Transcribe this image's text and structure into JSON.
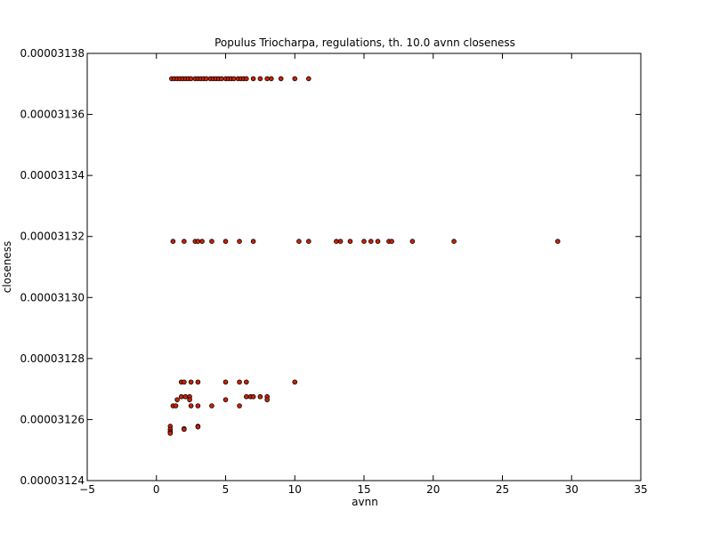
{
  "chart_data": {
    "type": "scatter",
    "title": "Populus Triocharpa, regulations, th. 10.0 avnn closeness",
    "xlabel": "avnn",
    "ylabel": "closeness",
    "xlim": [
      -5,
      35
    ],
    "ylim": [
      3.124e-05,
      3.138e-05
    ],
    "grid": false,
    "legend": "none",
    "marker_color": "#cc2200",
    "marker_edge": "#000000",
    "xticks": [
      {
        "value": -5,
        "label": "−5"
      },
      {
        "value": 0,
        "label": "0"
      },
      {
        "value": 5,
        "label": "5"
      },
      {
        "value": 10,
        "label": "10"
      },
      {
        "value": 15,
        "label": "15"
      },
      {
        "value": 20,
        "label": "20"
      },
      {
        "value": 25,
        "label": "25"
      },
      {
        "value": 30,
        "label": "30"
      },
      {
        "value": 35,
        "label": "35"
      }
    ],
    "yticks": [
      {
        "value": 3.124e-05,
        "label": "0.00003124"
      },
      {
        "value": 3.126e-05,
        "label": "0.00003126"
      },
      {
        "value": 3.128e-05,
        "label": "0.00003128"
      },
      {
        "value": 3.13e-05,
        "label": "0.00003130"
      },
      {
        "value": 3.132e-05,
        "label": "0.00003132"
      },
      {
        "value": 3.134e-05,
        "label": "0.00003134"
      },
      {
        "value": 3.136e-05,
        "label": "0.00003136"
      },
      {
        "value": 3.138e-05,
        "label": "0.00003138"
      }
    ],
    "points": [
      [
        1.1,
        3.13717e-05
      ],
      [
        1.3,
        3.13717e-05
      ],
      [
        1.5,
        3.13717e-05
      ],
      [
        1.7,
        3.13717e-05
      ],
      [
        1.9,
        3.13717e-05
      ],
      [
        2.1,
        3.13717e-05
      ],
      [
        2.3,
        3.13717e-05
      ],
      [
        2.5,
        3.13717e-05
      ],
      [
        2.8,
        3.13717e-05
      ],
      [
        3.0,
        3.13717e-05
      ],
      [
        3.2,
        3.13717e-05
      ],
      [
        3.4,
        3.13717e-05
      ],
      [
        3.6,
        3.13717e-05
      ],
      [
        3.9,
        3.13717e-05
      ],
      [
        4.1,
        3.13717e-05
      ],
      [
        4.3,
        3.13717e-05
      ],
      [
        4.5,
        3.13717e-05
      ],
      [
        4.7,
        3.13717e-05
      ],
      [
        5.0,
        3.13717e-05
      ],
      [
        5.2,
        3.13717e-05
      ],
      [
        5.4,
        3.13717e-05
      ],
      [
        5.6,
        3.13717e-05
      ],
      [
        5.9,
        3.13717e-05
      ],
      [
        6.1,
        3.13717e-05
      ],
      [
        6.3,
        3.13717e-05
      ],
      [
        6.5,
        3.13717e-05
      ],
      [
        7.0,
        3.13717e-05
      ],
      [
        7.5,
        3.13717e-05
      ],
      [
        8.0,
        3.13717e-05
      ],
      [
        8.3,
        3.13717e-05
      ],
      [
        9.0,
        3.13717e-05
      ],
      [
        10.0,
        3.13717e-05
      ],
      [
        11.0,
        3.13717e-05
      ],
      [
        1.2,
        3.13184e-05
      ],
      [
        2.0,
        3.13184e-05
      ],
      [
        2.8,
        3.13184e-05
      ],
      [
        3.0,
        3.13184e-05
      ],
      [
        3.3,
        3.13184e-05
      ],
      [
        4.0,
        3.13184e-05
      ],
      [
        5.0,
        3.13184e-05
      ],
      [
        6.0,
        3.13184e-05
      ],
      [
        7.0,
        3.13184e-05
      ],
      [
        10.3,
        3.13184e-05
      ],
      [
        11.0,
        3.13184e-05
      ],
      [
        13.0,
        3.13184e-05
      ],
      [
        13.3,
        3.13184e-05
      ],
      [
        14.0,
        3.13184e-05
      ],
      [
        15.0,
        3.13184e-05
      ],
      [
        15.5,
        3.13184e-05
      ],
      [
        16.0,
        3.13184e-05
      ],
      [
        16.8,
        3.13184e-05
      ],
      [
        17.0,
        3.13184e-05
      ],
      [
        18.5,
        3.13184e-05
      ],
      [
        21.5,
        3.13184e-05
      ],
      [
        29.0,
        3.13184e-05
      ],
      [
        1.8,
        3.12723e-05
      ],
      [
        2.0,
        3.12723e-05
      ],
      [
        2.5,
        3.12723e-05
      ],
      [
        3.0,
        3.12723e-05
      ],
      [
        5.0,
        3.12723e-05
      ],
      [
        6.0,
        3.12723e-05
      ],
      [
        6.5,
        3.12723e-05
      ],
      [
        10.0,
        3.12723e-05
      ],
      [
        1.8,
        3.12675e-05
      ],
      [
        2.1,
        3.12675e-05
      ],
      [
        2.4,
        3.12675e-05
      ],
      [
        6.5,
        3.12675e-05
      ],
      [
        6.8,
        3.12675e-05
      ],
      [
        7.0,
        3.12675e-05
      ],
      [
        7.5,
        3.12675e-05
      ],
      [
        8.0,
        3.12675e-05
      ],
      [
        1.5,
        3.12665e-05
      ],
      [
        2.4,
        3.12665e-05
      ],
      [
        5.0,
        3.12665e-05
      ],
      [
        8.0,
        3.12665e-05
      ],
      [
        1.2,
        3.12645e-05
      ],
      [
        1.4,
        3.12645e-05
      ],
      [
        2.5,
        3.12645e-05
      ],
      [
        3.0,
        3.12645e-05
      ],
      [
        4.0,
        3.12645e-05
      ],
      [
        6.0,
        3.12645e-05
      ],
      [
        3.0,
        3.12578e-05
      ],
      [
        3.0,
        3.12576e-05
      ],
      [
        1.0,
        3.12578e-05
      ],
      [
        1.0,
        3.12568e-05
      ],
      [
        1.0,
        3.1256e-05
      ],
      [
        1.0,
        3.12555e-05
      ],
      [
        2.0,
        3.1257e-05
      ],
      [
        2.0,
        3.12568e-05
      ]
    ]
  }
}
